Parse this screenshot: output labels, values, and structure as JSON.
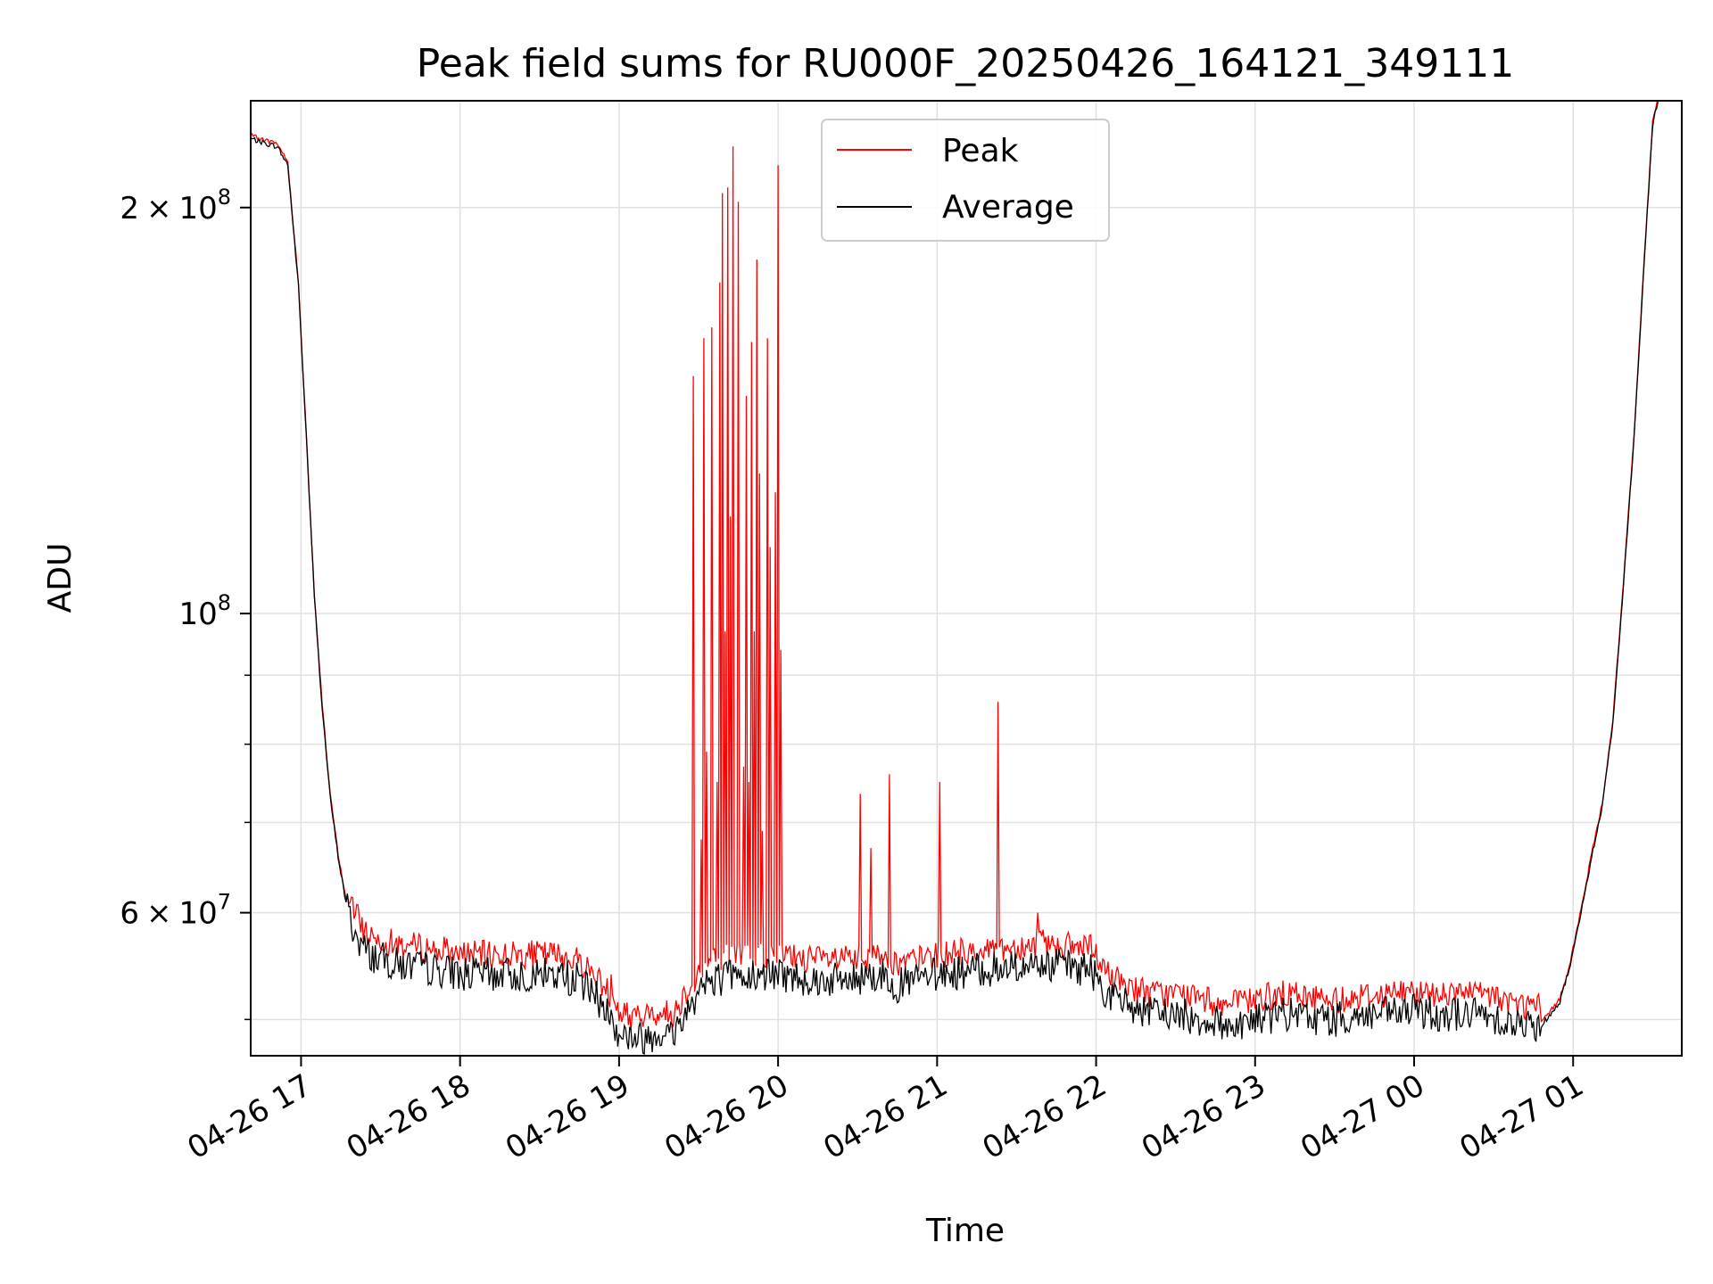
{
  "chart_data": {
    "type": "line",
    "title": "Peak field sums for RU000F_20250426_164121_349111",
    "xlabel": "Time",
    "ylabel": "ADU",
    "x_axis": {
      "kind": "time",
      "start": "2025-04-26 16:41",
      "end": "2025-04-27 01:41",
      "ticks": [
        "2025-04-26 17:00",
        "2025-04-26 18:00",
        "2025-04-26 19:00",
        "2025-04-26 20:00",
        "2025-04-26 21:00",
        "2025-04-26 22:00",
        "2025-04-26 23:00",
        "2025-04-27 00:00",
        "2025-04-27 01:00"
      ],
      "tick_labels": [
        "04-26 17",
        "04-26 18",
        "04-26 19",
        "04-26 20",
        "04-26 21",
        "04-26 22",
        "04-26 23",
        "04-27 00",
        "04-27 01"
      ]
    },
    "y_axis": {
      "scale": "log",
      "range": [
        47000000,
        240000000
      ],
      "major_ticks": [
        {
          "value": 60000000,
          "mantissa": "6",
          "times": "×",
          "base": "10",
          "exp": "7"
        },
        {
          "value": 100000000,
          "mantissa": "",
          "times": "",
          "base": "10",
          "exp": "8"
        },
        {
          "value": 200000000,
          "mantissa": "2",
          "times": "×",
          "base": "10",
          "exp": "8"
        }
      ],
      "minor_ticks": [
        50000000,
        70000000,
        80000000,
        90000000
      ]
    },
    "grid": true,
    "legend": {
      "position": "upper center",
      "entries": [
        {
          "name": "Peak",
          "color": "#ff0000"
        },
        {
          "name": "Average",
          "color": "#000000"
        }
      ]
    },
    "series": [
      {
        "name": "Average",
        "color": "#000000",
        "x": [
          "2025-04-26 16:41",
          "2025-04-26 16:47",
          "2025-04-26 16:51",
          "2025-04-26 16:55",
          "2025-04-26 16:59",
          "2025-04-26 17:02",
          "2025-04-26 17:05",
          "2025-04-26 17:08",
          "2025-04-26 17:11",
          "2025-04-26 17:14",
          "2025-04-26 17:17",
          "2025-04-26 17:20",
          "2025-04-26 17:25",
          "2025-04-26 17:35",
          "2025-04-26 17:50",
          "2025-04-26 18:05",
          "2025-04-26 18:20",
          "2025-04-26 18:35",
          "2025-04-26 18:45",
          "2025-04-26 18:55",
          "2025-04-26 19:00",
          "2025-04-26 19:05",
          "2025-04-26 19:10",
          "2025-04-26 19:15",
          "2025-04-26 19:20",
          "2025-04-26 19:25",
          "2025-04-26 19:30",
          "2025-04-26 19:35",
          "2025-04-26 19:45",
          "2025-04-26 20:00",
          "2025-04-26 20:15",
          "2025-04-26 20:30",
          "2025-04-26 20:40",
          "2025-04-26 20:45",
          "2025-04-26 21:00",
          "2025-04-26 21:20",
          "2025-04-26 21:40",
          "2025-04-26 21:58",
          "2025-04-26 22:05",
          "2025-04-26 22:15",
          "2025-04-26 22:20",
          "2025-04-26 22:30",
          "2025-04-26 22:40",
          "2025-04-26 22:50",
          "2025-04-26 23:00",
          "2025-04-26 23:10",
          "2025-04-26 23:20",
          "2025-04-26 23:30",
          "2025-04-26 23:40",
          "2025-04-26 23:50",
          "2025-04-27 00:00",
          "2025-04-27 00:10",
          "2025-04-27 00:20",
          "2025-04-27 00:30",
          "2025-04-27 00:40",
          "2025-04-27 00:48",
          "2025-04-27 00:55",
          "2025-04-27 00:59",
          "2025-04-27 01:03",
          "2025-04-27 01:07",
          "2025-04-27 01:11",
          "2025-04-27 01:15",
          "2025-04-27 01:19",
          "2025-04-27 01:23",
          "2025-04-27 01:27",
          "2025-04-27 01:30",
          "2025-04-27 01:32"
        ],
        "y": [
          225000000,
          223000000,
          222000000,
          215000000,
          175000000,
          135000000,
          103000000,
          85000000,
          73000000,
          66000000,
          61000000,
          58000000,
          56000000,
          55000000,
          54500000,
          54000000,
          54000000,
          54000000,
          53500000,
          51000000,
          49000000,
          48500000,
          48500000,
          49000000,
          48700000,
          50500000,
          52500000,
          53500000,
          54000000,
          54000000,
          53500000,
          53500000,
          54000000,
          53000000,
          54000000,
          54500000,
          55000000,
          54500000,
          52000000,
          51000000,
          50500000,
          50500000,
          50000000,
          49500000,
          50000000,
          50500000,
          50200000,
          50000000,
          50300000,
          50500000,
          50700000,
          50500000,
          50500000,
          50300000,
          49500000,
          49500000,
          51500000,
          55000000,
          60000000,
          66000000,
          72000000,
          83000000,
          105000000,
          135000000,
          185000000,
          230000000,
          240000000
        ]
      },
      {
        "name": "Peak",
        "color": "#ff0000",
        "spikes": [
          {
            "x": "2025-04-26 19:28",
            "y": 150000000
          },
          {
            "x": "2025-04-26 19:31",
            "y": 68000000
          },
          {
            "x": "2025-04-26 19:32",
            "y": 160000000
          },
          {
            "x": "2025-04-26 19:33",
            "y": 79000000
          },
          {
            "x": "2025-04-26 19:35",
            "y": 163000000
          },
          {
            "x": "2025-04-26 19:37",
            "y": 75000000
          },
          {
            "x": "2025-04-26 19:38",
            "y": 176000000
          },
          {
            "x": "2025-04-26 19:39",
            "y": 205000000
          },
          {
            "x": "2025-04-26 19:40",
            "y": 97000000
          },
          {
            "x": "2025-04-26 19:41",
            "y": 207000000
          },
          {
            "x": "2025-04-26 19:42",
            "y": 118000000
          },
          {
            "x": "2025-04-26 19:43",
            "y": 222000000
          },
          {
            "x": "2025-04-26 19:45",
            "y": 202000000
          },
          {
            "x": "2025-04-26 19:47",
            "y": 77000000
          },
          {
            "x": "2025-04-26 19:48",
            "y": 145000000
          },
          {
            "x": "2025-04-26 19:49",
            "y": 75000000
          },
          {
            "x": "2025-04-26 19:50",
            "y": 159000000
          },
          {
            "x": "2025-04-26 19:51",
            "y": 97000000
          },
          {
            "x": "2025-04-26 19:52",
            "y": 183000000
          },
          {
            "x": "2025-04-26 19:53",
            "y": 127000000
          },
          {
            "x": "2025-04-26 19:54",
            "y": 69000000
          },
          {
            "x": "2025-04-26 19:56",
            "y": 160000000
          },
          {
            "x": "2025-04-26 19:57",
            "y": 112000000
          },
          {
            "x": "2025-04-26 19:59",
            "y": 123000000
          },
          {
            "x": "2025-04-26 20:00",
            "y": 215000000
          },
          {
            "x": "2025-04-26 20:01",
            "y": 94000000
          },
          {
            "x": "2025-04-26 20:31",
            "y": 73500000
          },
          {
            "x": "2025-04-26 20:35",
            "y": 67000000
          },
          {
            "x": "2025-04-26 20:42",
            "y": 76000000
          },
          {
            "x": "2025-04-26 21:01",
            "y": 75000000
          },
          {
            "x": "2025-04-26 21:23",
            "y": 86000000
          },
          {
            "x": "2025-04-26 21:38",
            "y": 60000000
          },
          {
            "x": "2025-04-26 17:58",
            "y": 56000000
          },
          {
            "x": "2025-04-26 18:57",
            "y": 54000000
          },
          {
            "x": "2025-04-27 00:05",
            "y": 53000000
          }
        ]
      }
    ]
  }
}
